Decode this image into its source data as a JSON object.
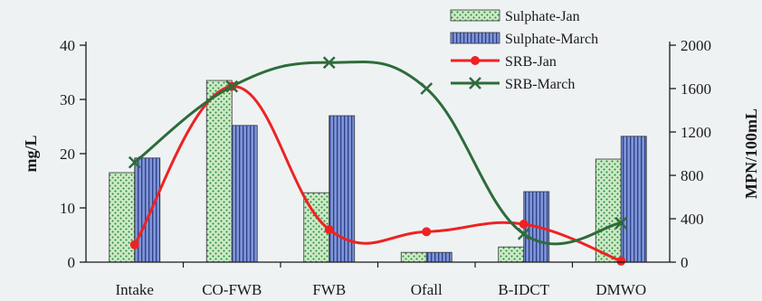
{
  "chart_data": {
    "type": "bar",
    "categories": [
      "Intake",
      "CO-FWB",
      "FWB",
      "Ofall",
      "B-IDCT",
      "DMWO"
    ],
    "ylabel": "mg/L",
    "ylabel_right": "MPN/100mL",
    "ylim": [
      0,
      40
    ],
    "ylim_right": [
      0,
      2000
    ],
    "yticks": [
      0,
      10,
      20,
      30,
      40
    ],
    "yticks_right": [
      0,
      400,
      800,
      1200,
      1600,
      2000
    ],
    "bar_series": [
      {
        "name": "Sulphate-Jan",
        "values": [
          16.5,
          33.5,
          12.8,
          1.8,
          2.8,
          19
        ],
        "color": "#cde9c6",
        "dot_color": "#1f8a3a"
      },
      {
        "name": "Sulphate-March",
        "values": [
          19.2,
          25.2,
          27,
          1.8,
          13,
          23.2
        ],
        "color": "#6f86c8",
        "stripe_color": "#2d3f8f"
      }
    ],
    "line_series": [
      {
        "name": "SRB-Jan",
        "axis": "right",
        "values": [
          160,
          1620,
          300,
          280,
          350,
          10
        ],
        "color": "#ee2222",
        "marker": "circle"
      },
      {
        "name": "SRB-March",
        "axis": "right",
        "values": [
          920,
          1620,
          1840,
          1600,
          260,
          360
        ],
        "color": "#2e6b3a",
        "marker": "x"
      }
    ],
    "legend_position": "top-right",
    "grid": false
  }
}
